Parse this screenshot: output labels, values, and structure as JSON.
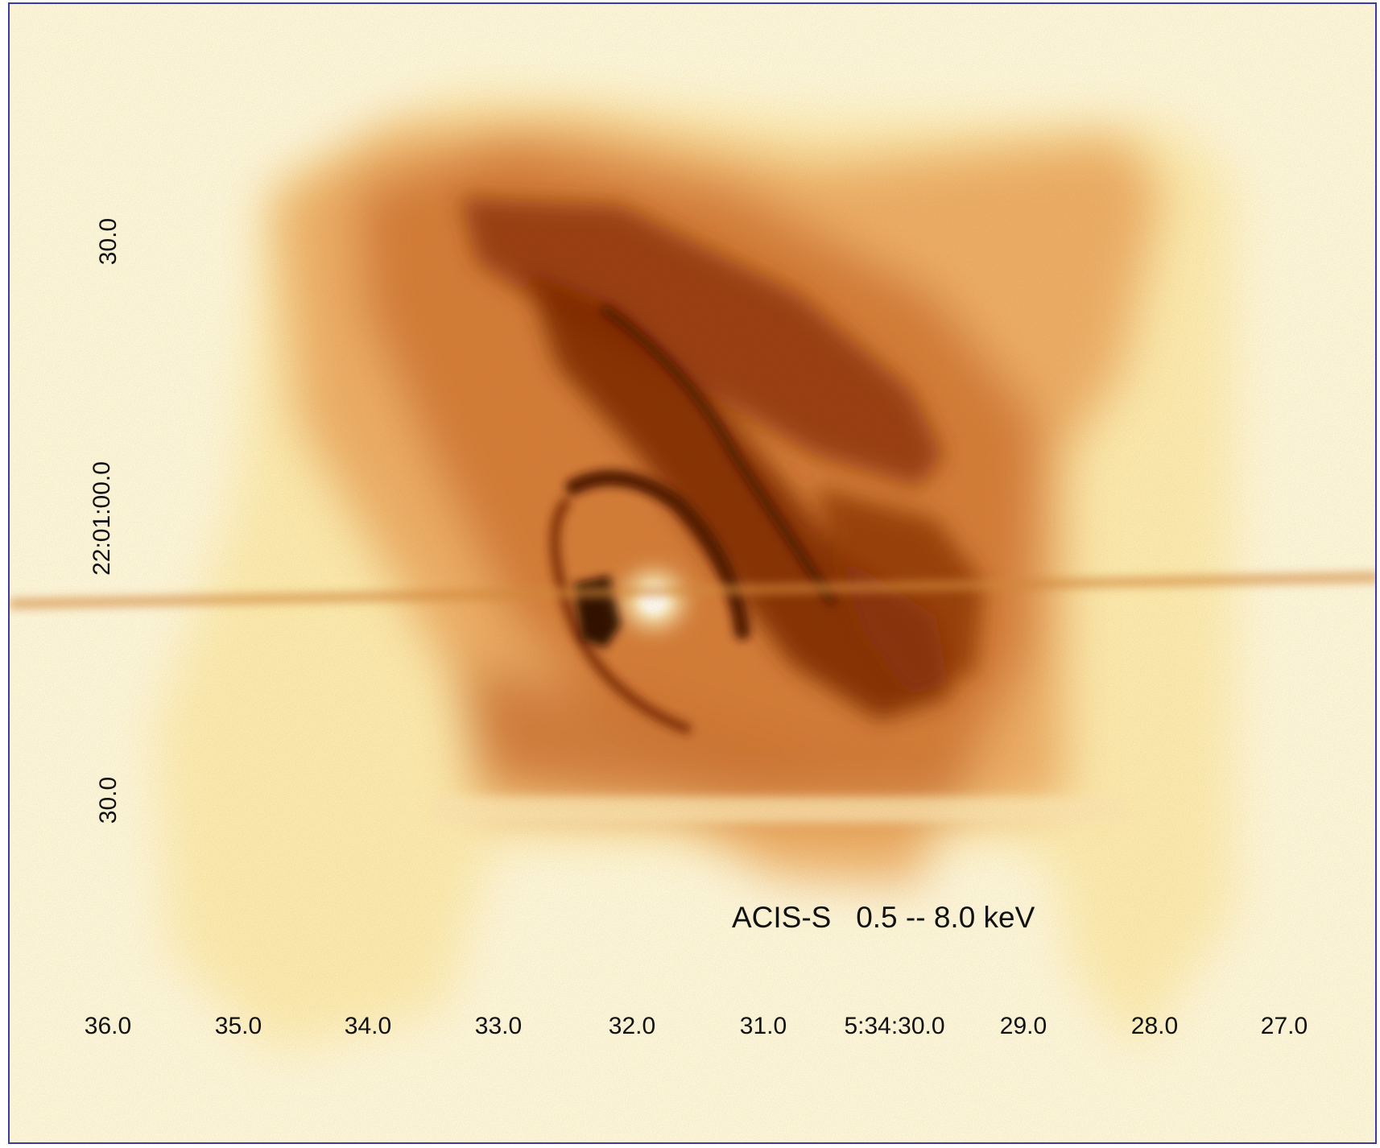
{
  "image": {
    "caption": "ACIS-S   0.5 -- 8.0 keV",
    "x_axis_ticks": [
      "36.0",
      "35.0",
      "34.0",
      "33.0",
      "32.0",
      "31.0",
      "5:34:30.0",
      "29.0",
      "28.0",
      "27.0"
    ],
    "y_axis_ticks": [
      "30.0",
      "22:01:00.0",
      "30.0"
    ],
    "colors": {
      "background": "#fffbe2",
      "glow": "#fde9a6",
      "nebula_mid": "#e59a50",
      "nebula_dark": "#a8430f",
      "core_dark": "#3a0b02",
      "pulsar": "#ffffff",
      "frame": "#3a3aa0"
    }
  }
}
